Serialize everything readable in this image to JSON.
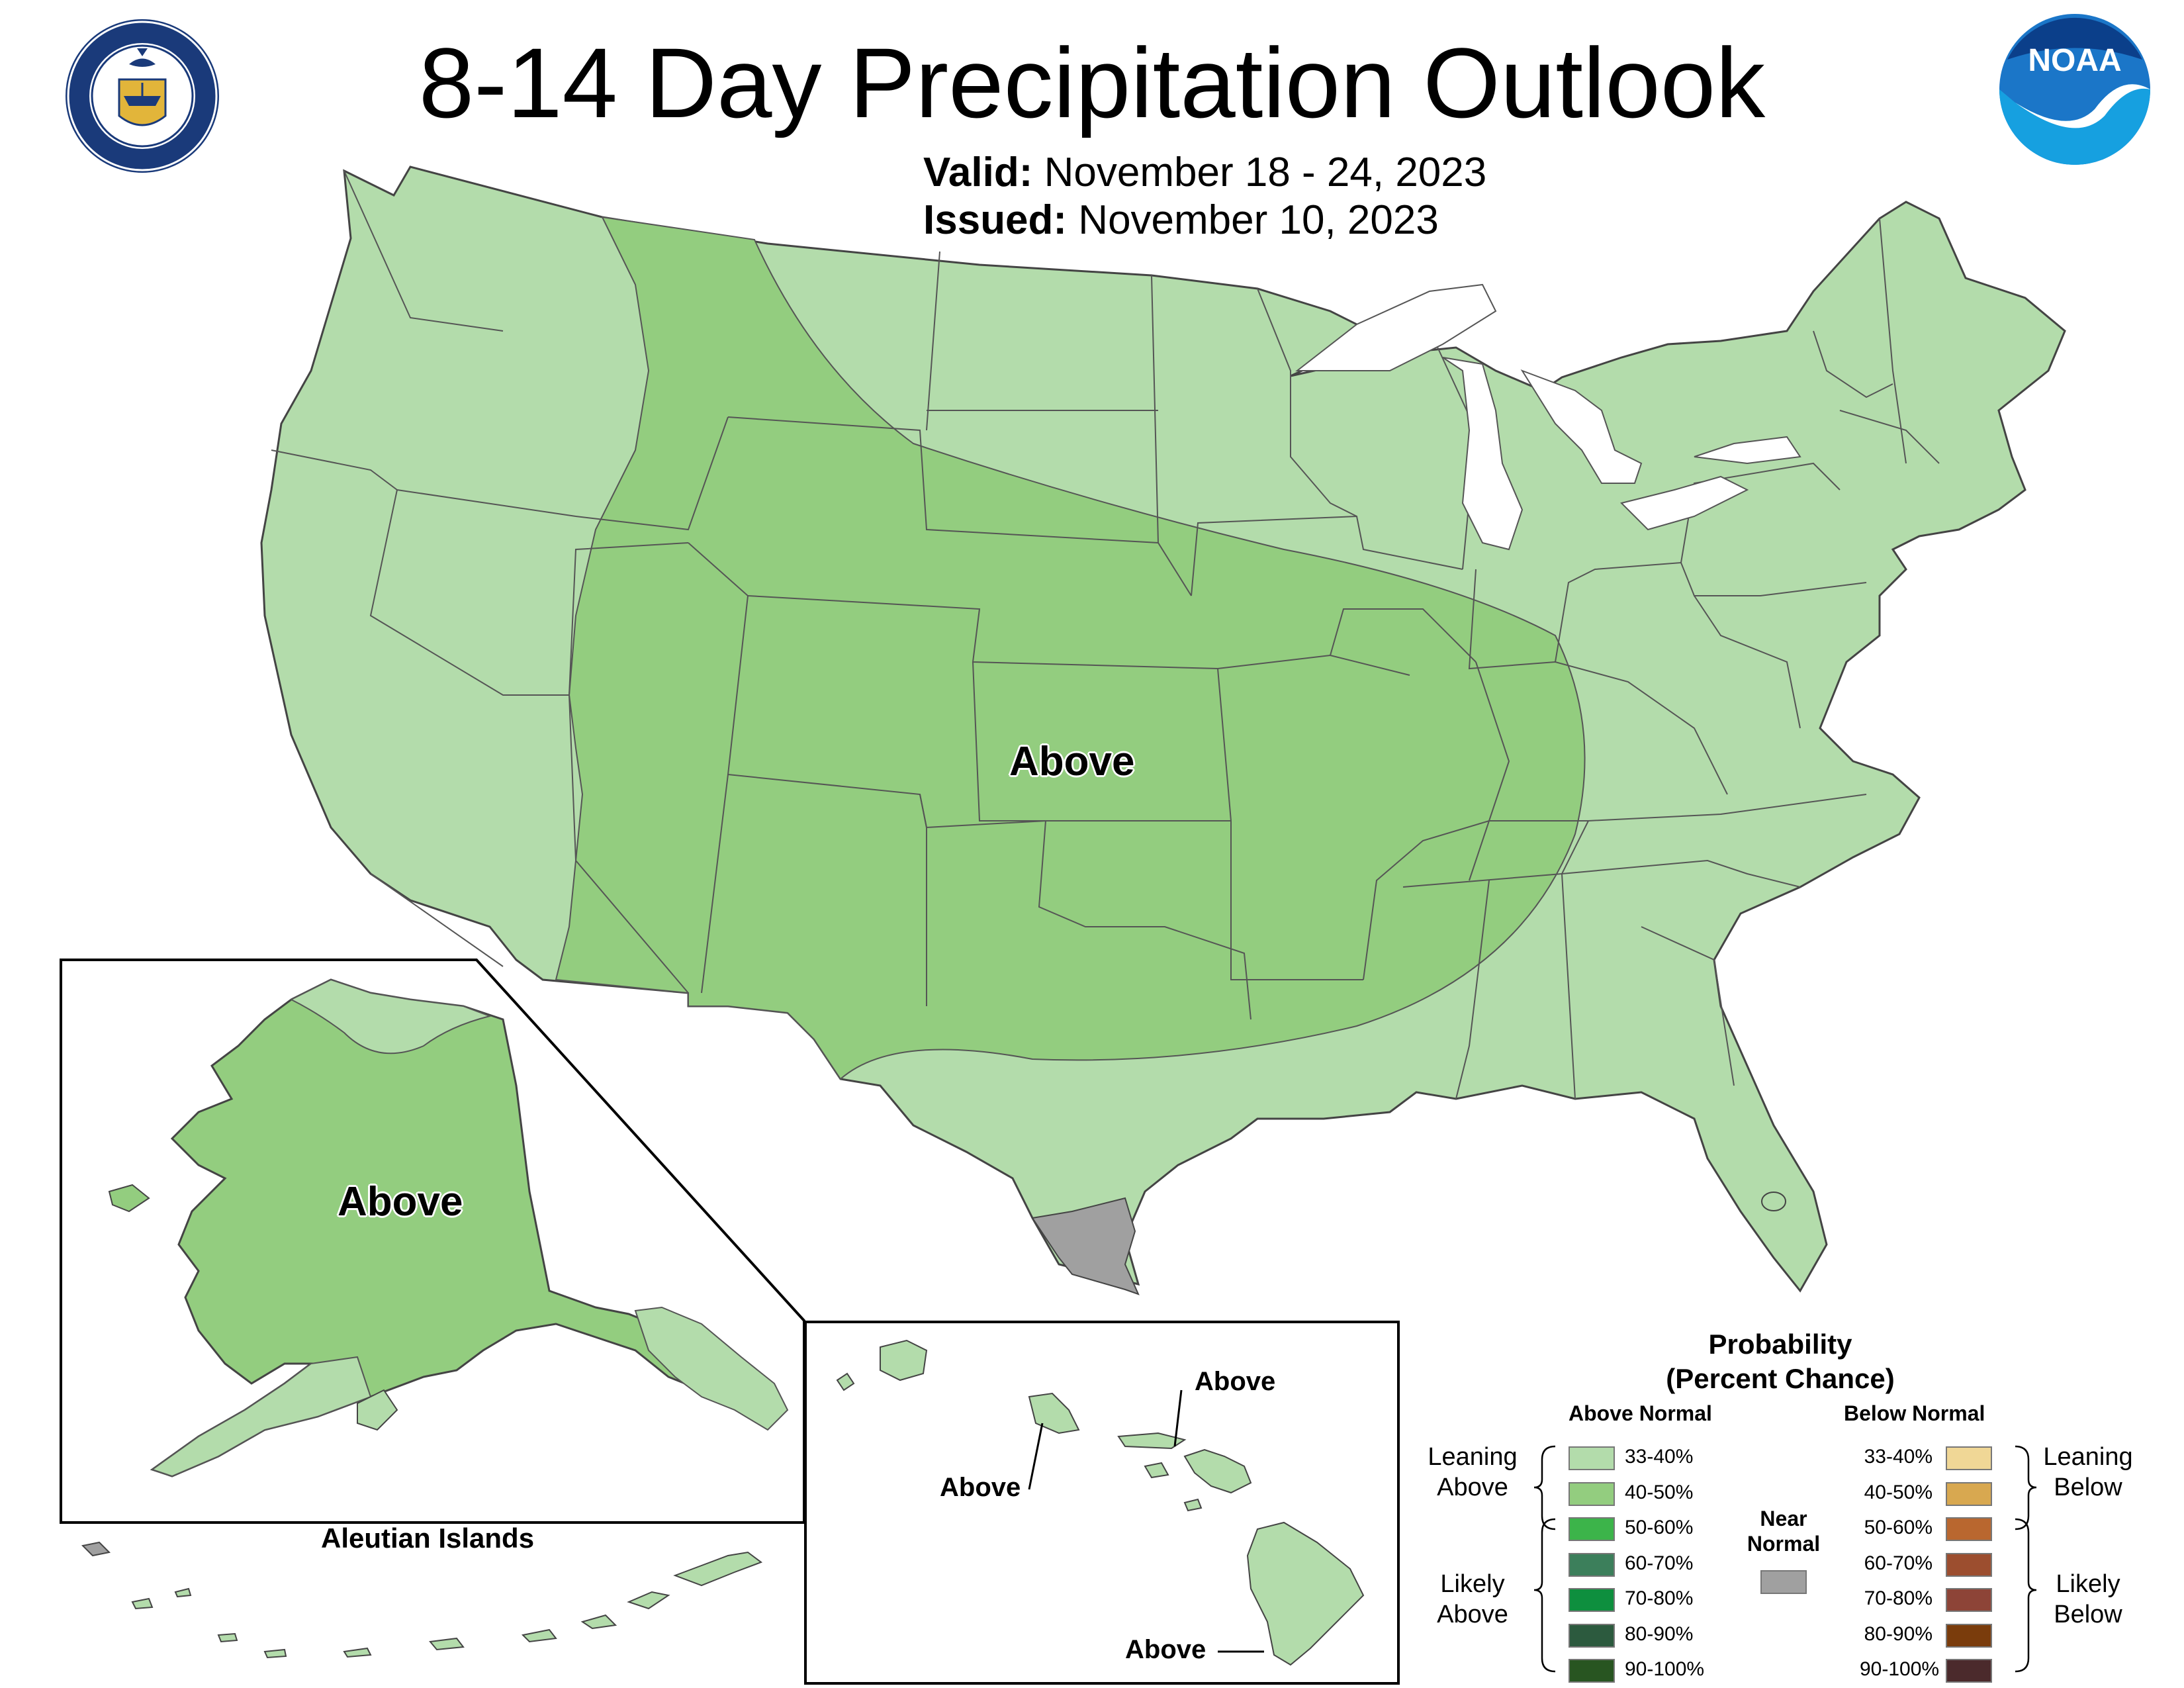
{
  "header": {
    "title": "8-14 Day Precipitation Outlook",
    "valid_label": "Valid:",
    "valid_value": "November 18 - 24, 2023",
    "issued_label": "Issued:",
    "issued_value": "November 10, 2023"
  },
  "logos": {
    "commerce_seal": "DEPARTMENT OF COMMERCE · UNITED STATES OF AMERICA",
    "noaa": "NOAA"
  },
  "map_labels": {
    "conus": "Above",
    "alaska": "Above",
    "aleutian_title": "Aleutian Islands",
    "hawaii_kauai": "Above",
    "hawaii_oahu": "Above",
    "hawaii_big_island": "Above"
  },
  "legend": {
    "title_line1": "Probability",
    "title_line2": "(Percent Chance)",
    "above_header": "Above Normal",
    "below_header": "Below Normal",
    "near_normal_line1": "Near",
    "near_normal_line2": "Normal",
    "near_normal_color": "#a0a0a0",
    "leaning_above_line1": "Leaning",
    "leaning_above_line2": "Above",
    "likely_above_line1": "Likely",
    "likely_above_line2": "Above",
    "leaning_below_line1": "Leaning",
    "leaning_below_line2": "Below",
    "likely_below_line1": "Likely",
    "likely_below_line2": "Below",
    "above": [
      {
        "range": "33-40%",
        "color": "#b3dcab"
      },
      {
        "range": "40-50%",
        "color": "#93cd7f"
      },
      {
        "range": "50-60%",
        "color": "#3cb44a"
      },
      {
        "range": "60-70%",
        "color": "#3c7f5b"
      },
      {
        "range": "70-80%",
        "color": "#0e8f3e"
      },
      {
        "range": "80-90%",
        "color": "#2c5a3e"
      },
      {
        "range": "90-100%",
        "color": "#285521"
      }
    ],
    "below": [
      {
        "range": "33-40%",
        "color": "#f0d796"
      },
      {
        "range": "40-50%",
        "color": "#d8a850"
      },
      {
        "range": "50-60%",
        "color": "#b9672f"
      },
      {
        "range": "60-70%",
        "color": "#9c4e2f"
      },
      {
        "range": "70-80%",
        "color": "#8d4437"
      },
      {
        "range": "80-90%",
        "color": "#7a3c0c"
      },
      {
        "range": "90-100%",
        "color": "#4b2a2c"
      }
    ]
  },
  "map_colors": {
    "leaning_above_light": "#b3dcab",
    "leaning_above_medium": "#93cd7f",
    "near_normal": "#a0a0a0",
    "state_border": "#555555"
  }
}
